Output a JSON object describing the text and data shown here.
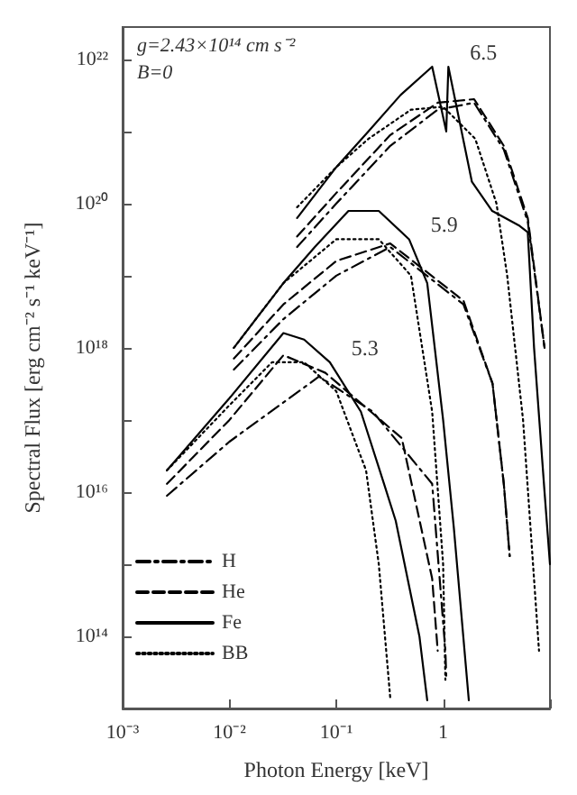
{
  "chart_data": {
    "type": "line",
    "log": "xy",
    "grid": false,
    "legend": "bottom left",
    "xlabel": "Photon Energy [keV]",
    "ylabel": "Spectral Flux [erg cm⁻² s⁻¹ keV⁻¹]",
    "xlim": [
      0.001,
      10
    ],
    "ylim": [
      10000000000000.0,
      2.8e+22
    ],
    "xticks": [
      {
        "value": 0.001,
        "label": "10⁻³"
      },
      {
        "value": 0.01,
        "label": "10⁻²"
      },
      {
        "value": 0.1,
        "label": "10⁻¹"
      },
      {
        "value": 1,
        "label": "1"
      },
      {
        "value": 10,
        "label": null
      }
    ],
    "yticks": [
      {
        "value": 100000000000000.0,
        "label": "10¹⁴"
      },
      {
        "value": 1000000000000000.0,
        "label": null
      },
      {
        "value": 1e+16,
        "label": "10¹⁶"
      },
      {
        "value": 1e+17,
        "label": null
      },
      {
        "value": 1e+18,
        "label": "10¹⁸"
      },
      {
        "value": 1e+19,
        "label": null
      },
      {
        "value": 1e+20,
        "label": "10²⁰"
      },
      {
        "value": 1e+21,
        "label": null
      },
      {
        "value": 1e+22,
        "label": "10²²"
      }
    ],
    "annotations": [
      "g=2.43×10¹⁴ cm s⁻²",
      "B=0",
      {
        "text": "6.5",
        "x": 1.12,
        "y": 7.9e+21
      },
      {
        "text": "5.9",
        "x": 0.48,
        "y": 3.2e+19
      },
      {
        "text": "5.3",
        "x": 0.087,
        "y": 6.3e+17
      }
    ],
    "series": [
      {
        "name": "H",
        "color": "#000000",
        "line_style": "dashdot",
        "x": [
          0.043,
          0.1,
          0.32,
          0.89,
          1.95,
          3.7,
          6.2,
          8.9
        ],
        "values": [
          2.5e+19,
          1e+20,
          6.3e+20,
          2e+21,
          2.5e+21,
          5.6e+20,
          5.6e+19,
          1e+18
        ]
      },
      {
        "name": "He",
        "color": "#000000",
        "line_style": "dashed",
        "x": [
          0.043,
          0.1,
          0.32,
          0.89,
          1.95,
          3.7,
          6.2,
          8.9
        ],
        "values": [
          3.5e+19,
          1.4e+20,
          8.9e+20,
          2.5e+21,
          2.8e+21,
          6.3e+20,
          6.3e+19,
          1e+18
        ]
      },
      {
        "name": "Fe",
        "color": "#000000",
        "line_style": "solid",
        "x": [
          0.043,
          0.1,
          0.2,
          0.4,
          0.79,
          1.07,
          1.12,
          1.86,
          2.88,
          5.1,
          6.2,
          7.1,
          8.9,
          10
        ],
        "values": [
          6.3e+19,
          3.2e+20,
          1e+21,
          3.2e+21,
          7.9e+21,
          1e+21,
          7.9e+21,
          2e+20,
          7.9e+19,
          5e+19,
          4e+19,
          1e+18,
          1e+16,
          1000000000000000.0
        ]
      },
      {
        "name": "BB",
        "color": "#000000",
        "line_style": "dotted",
        "x": [
          0.043,
          0.1,
          0.2,
          0.5,
          1,
          2,
          3.16,
          3.98,
          5.6,
          7.9
        ],
        "values": [
          8.9e+19,
          3.2e+20,
          7.9e+20,
          2e+21,
          2.2e+21,
          7.9e+20,
          1e+20,
          1e+19,
          1e+17,
          63000000000000.0
        ]
      },
      {
        "color": "#000000",
        "line_style": "dashdot",
        "x": [
          0.011,
          0.032,
          0.1,
          0.32,
          1.55,
          2.9,
          3.7,
          4.2
        ],
        "values": [
          5e+17,
          2.5e+18,
          1e+19,
          2.5e+19,
          4e+18,
          3.2e+17,
          1.3e+16,
          1300000000000000.0
        ]
      },
      {
        "color": "#000000",
        "line_style": "dashed",
        "x": [
          0.011,
          0.032,
          0.1,
          0.32,
          1.55,
          2.9,
          3.7,
          4.2
        ],
        "values": [
          7.1e+17,
          4e+18,
          1.6e+19,
          2.8e+19,
          4.5e+18,
          3.2e+17,
          1.3e+16,
          1300000000000000.0
        ]
      },
      {
        "color": "#000000",
        "line_style": "solid",
        "x": [
          0.011,
          0.032,
          0.063,
          0.13,
          0.25,
          0.48,
          0.71,
          1,
          1.26,
          1.74
        ],
        "values": [
          1e+18,
          7.9e+18,
          2.5e+19,
          7.9e+19,
          7.9e+19,
          3.2e+19,
          7.9e+18,
          1e+17,
          3200000000000000.0,
          13000000000000.0
        ]
      },
      {
        "color": "#000000",
        "line_style": "dotted",
        "x": [
          0.011,
          0.032,
          0.1,
          0.25,
          0.5,
          0.79,
          1,
          1.05
        ],
        "values": [
          1e+18,
          7.9e+18,
          3.2e+19,
          3.2e+19,
          1e+19,
          1.3e+17,
          1000000000000000.0,
          25000000000000.0
        ]
      },
      {
        "color": "#000000",
        "line_style": "dashdot",
        "x": [
          0.0026,
          0.01,
          0.069,
          0.22,
          0.79,
          1.05,
          1.07
        ],
        "values": [
          8900000000000000.0,
          5e+16,
          4e+17,
          1.3e+17,
          1.3e+16,
          63000000000000.0,
          28000000000000.0
        ]
      },
      {
        "color": "#000000",
        "line_style": "dashed",
        "x": [
          0.0026,
          0.01,
          0.032,
          0.079,
          0.41,
          0.79,
          0.89
        ],
        "values": [
          1.3e+16,
          1e+17,
          7.9e+17,
          4.5e+17,
          5.6e+16,
          630000000000000.0,
          63000000000000.0
        ]
      },
      {
        "color": "#000000",
        "line_style": "solid",
        "x": [
          0.0026,
          0.01,
          0.032,
          0.05,
          0.087,
          0.17,
          0.28,
          0.36,
          0.6,
          0.71
        ],
        "values": [
          2e+16,
          2e+17,
          1.6e+18,
          1.3e+18,
          6.3e+17,
          1.3e+17,
          1.3e+16,
          4000000000000000.0,
          100000000000000.0,
          13000000000000.0
        ]
      },
      {
        "color": "#000000",
        "line_style": "dotted",
        "x": [
          0.0026,
          0.01,
          0.025,
          0.05,
          0.1,
          0.19,
          0.25,
          0.32
        ],
        "values": [
          2e+16,
          1.6e+17,
          6.3e+17,
          6.3e+17,
          2.5e+17,
          2e+16,
          1000000000000000.0,
          14000000000000.0
        ]
      }
    ]
  }
}
